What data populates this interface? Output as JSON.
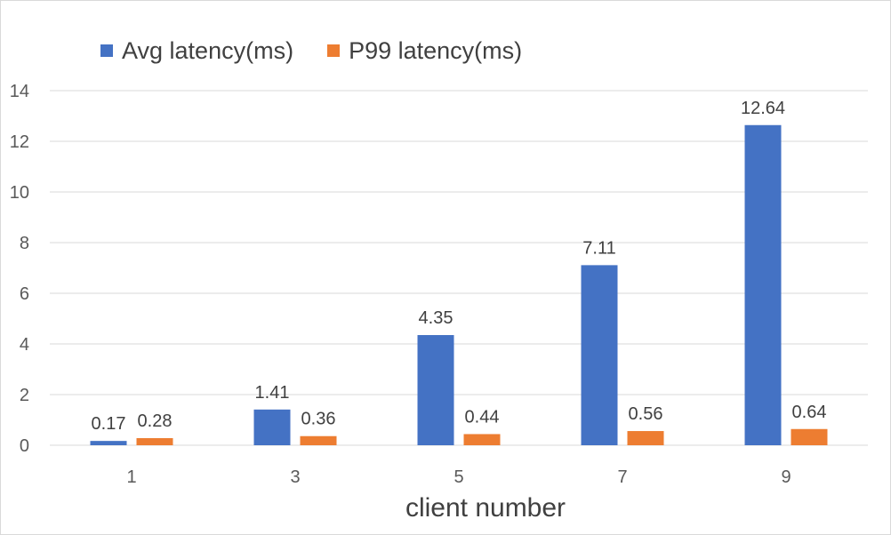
{
  "chart_data": {
    "type": "bar",
    "title": "",
    "xlabel": "client number",
    "ylabel": "",
    "categories": [
      "1",
      "3",
      "5",
      "7",
      "9"
    ],
    "series": [
      {
        "name": "Avg latency(ms)",
        "color": "#4472C4",
        "values": [
          0.17,
          1.41,
          4.35,
          7.11,
          12.64
        ]
      },
      {
        "name": "P99 latency(ms)",
        "color": "#ED7D31",
        "values": [
          0.28,
          0.36,
          0.44,
          0.56,
          0.64
        ]
      }
    ],
    "ylim": [
      0,
      14
    ],
    "yticks": [
      0,
      2,
      4,
      6,
      8,
      10,
      12,
      14
    ],
    "grid": true,
    "legend_position": "top-left"
  }
}
